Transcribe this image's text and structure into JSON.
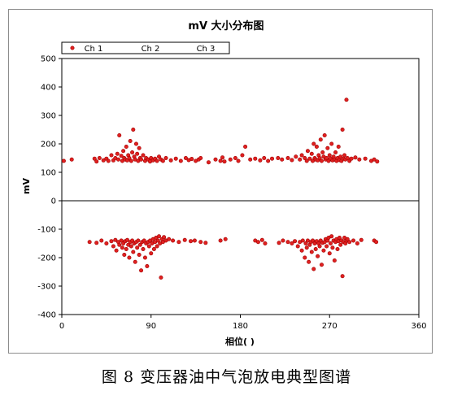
{
  "caption": "图 8  变压器油中气泡放电典型图谱",
  "colors": {
    "point_fill": "#e02020",
    "point_stroke": "#a00000",
    "zero_line": "#000000",
    "plot_border": "#000000",
    "frame": "#8c8c8c"
  },
  "chart_data": {
    "type": "scatter",
    "title": "mV 大小分布图",
    "xlabel": "相位( )",
    "ylabel": "mV",
    "xlim": [
      0,
      360
    ],
    "ylim": [
      -400,
      500
    ],
    "xticks": [
      0,
      90,
      180,
      270,
      360
    ],
    "yticks": [
      -400,
      -300,
      -200,
      -100,
      0,
      100,
      200,
      300,
      400,
      500
    ],
    "grid": false,
    "legend_position": "top-left",
    "legend": [
      "Ch 1",
      "Ch 2",
      "Ch 3"
    ],
    "series": [
      {
        "name": "Ch 1",
        "points": [
          [
            2,
            140
          ],
          [
            10,
            145
          ],
          [
            33,
            148
          ],
          [
            35,
            138
          ],
          [
            38,
            150
          ],
          [
            42,
            142
          ],
          [
            45,
            148
          ],
          [
            47,
            140
          ],
          [
            50,
            160
          ],
          [
            52,
            142
          ],
          [
            54,
            150
          ],
          [
            56,
            165
          ],
          [
            57,
            145
          ],
          [
            58,
            230
          ],
          [
            60,
            158
          ],
          [
            61,
            140
          ],
          [
            62,
            175
          ],
          [
            63,
            150
          ],
          [
            64,
            145
          ],
          [
            65,
            190
          ],
          [
            66,
            142
          ],
          [
            67,
            160
          ],
          [
            68,
            150
          ],
          [
            69,
            210
          ],
          [
            70,
            140
          ],
          [
            71,
            170
          ],
          [
            72,
            250
          ],
          [
            73,
            155
          ],
          [
            74,
            145
          ],
          [
            75,
            200
          ],
          [
            76,
            165
          ],
          [
            77,
            140
          ],
          [
            78,
            185
          ],
          [
            79,
            150
          ],
          [
            80,
            145
          ],
          [
            82,
            160
          ],
          [
            84,
            140
          ],
          [
            85,
            150
          ],
          [
            87,
            145
          ],
          [
            89,
            138
          ],
          [
            90,
            150
          ],
          [
            92,
            142
          ],
          [
            94,
            148
          ],
          [
            96,
            140
          ],
          [
            98,
            155
          ],
          [
            100,
            145
          ],
          [
            102,
            140
          ],
          [
            105,
            150
          ],
          [
            110,
            142
          ],
          [
            115,
            148
          ],
          [
            120,
            140
          ],
          [
            125,
            150
          ],
          [
            128,
            143
          ],
          [
            131,
            147
          ],
          [
            135,
            140
          ],
          [
            138,
            145
          ],
          [
            140,
            150
          ],
          [
            148,
            135
          ],
          [
            155,
            145
          ],
          [
            160,
            140
          ],
          [
            162,
            152
          ],
          [
            164,
            138
          ],
          [
            170,
            145
          ],
          [
            175,
            150
          ],
          [
            178,
            140
          ],
          [
            182,
            160
          ],
          [
            185,
            190
          ],
          [
            190,
            145
          ],
          [
            195,
            148
          ],
          [
            200,
            142
          ],
          [
            204,
            150
          ],
          [
            208,
            140
          ],
          [
            212,
            148
          ],
          [
            218,
            150
          ],
          [
            222,
            145
          ],
          [
            228,
            150
          ],
          [
            232,
            143
          ],
          [
            236,
            155
          ],
          [
            240,
            145
          ],
          [
            242,
            160
          ],
          [
            245,
            150
          ],
          [
            247,
            140
          ],
          [
            248,
            175
          ],
          [
            250,
            148
          ],
          [
            252,
            165
          ],
          [
            253,
            140
          ],
          [
            254,
            200
          ],
          [
            255,
            150
          ],
          [
            256,
            145
          ],
          [
            257,
            190
          ],
          [
            258,
            142
          ],
          [
            259,
            160
          ],
          [
            260,
            150
          ],
          [
            261,
            215
          ],
          [
            262,
            140
          ],
          [
            263,
            170
          ],
          [
            264,
            155
          ],
          [
            265,
            230
          ],
          [
            266,
            145
          ],
          [
            267,
            150
          ],
          [
            268,
            185
          ],
          [
            269,
            140
          ],
          [
            270,
            160
          ],
          [
            271,
            148
          ],
          [
            272,
            200
          ],
          [
            273,
            142
          ],
          [
            274,
            155
          ],
          [
            275,
            145
          ],
          [
            276,
            170
          ],
          [
            277,
            140
          ],
          [
            278,
            150
          ],
          [
            279,
            190
          ],
          [
            280,
            143
          ],
          [
            281,
            155
          ],
          [
            282,
            140
          ],
          [
            283,
            250
          ],
          [
            284,
            148
          ],
          [
            285,
            160
          ],
          [
            286,
            145
          ],
          [
            287,
            355
          ],
          [
            288,
            150
          ],
          [
            290,
            140
          ],
          [
            292,
            148
          ],
          [
            296,
            152
          ],
          [
            300,
            145
          ],
          [
            306,
            148
          ],
          [
            312,
            140
          ],
          [
            315,
            145
          ],
          [
            318,
            138
          ]
        ]
      },
      {
        "name": "Ch 1",
        "points": [
          [
            28,
            -145
          ],
          [
            35,
            -148
          ],
          [
            40,
            -140
          ],
          [
            45,
            -150
          ],
          [
            50,
            -142
          ],
          [
            52,
            -160
          ],
          [
            54,
            -138
          ],
          [
            55,
            -175
          ],
          [
            57,
            -145
          ],
          [
            58,
            -155
          ],
          [
            60,
            -140
          ],
          [
            61,
            -165
          ],
          [
            62,
            -150
          ],
          [
            63,
            -190
          ],
          [
            64,
            -142
          ],
          [
            65,
            -170
          ],
          [
            66,
            -138
          ],
          [
            67,
            -155
          ],
          [
            68,
            -200
          ],
          [
            69,
            -145
          ],
          [
            70,
            -160
          ],
          [
            71,
            -140
          ],
          [
            72,
            -180
          ],
          [
            73,
            -150
          ],
          [
            74,
            -215
          ],
          [
            75,
            -145
          ],
          [
            76,
            -165
          ],
          [
            77,
            -140
          ],
          [
            78,
            -190
          ],
          [
            79,
            -155
          ],
          [
            80,
            -245
          ],
          [
            81,
            -145
          ],
          [
            82,
            -170
          ],
          [
            83,
            -140
          ],
          [
            84,
            -200
          ],
          [
            85,
            -150
          ],
          [
            86,
            -230
          ],
          [
            87,
            -145
          ],
          [
            88,
            -160
          ],
          [
            89,
            -140
          ],
          [
            90,
            -185
          ],
          [
            91,
            -150
          ],
          [
            92,
            -135
          ],
          [
            93,
            -170
          ],
          [
            94,
            -145
          ],
          [
            95,
            -130
          ],
          [
            96,
            -160
          ],
          [
            97,
            -140
          ],
          [
            98,
            -125
          ],
          [
            99,
            -150
          ],
          [
            100,
            -270
          ],
          [
            101,
            -135
          ],
          [
            102,
            -145
          ],
          [
            103,
            -128
          ],
          [
            105,
            -140
          ],
          [
            108,
            -135
          ],
          [
            112,
            -140
          ],
          [
            118,
            -145
          ],
          [
            124,
            -138
          ],
          [
            130,
            -142
          ],
          [
            134,
            -140
          ],
          [
            140,
            -145
          ],
          [
            145,
            -148
          ],
          [
            160,
            -140
          ],
          [
            165,
            -135
          ],
          [
            195,
            -140
          ],
          [
            198,
            -145
          ],
          [
            202,
            -138
          ],
          [
            205,
            -150
          ],
          [
            219,
            -148
          ],
          [
            223,
            -140
          ],
          [
            228,
            -145
          ],
          [
            232,
            -150
          ],
          [
            235,
            -142
          ],
          [
            238,
            -160
          ],
          [
            240,
            -145
          ],
          [
            242,
            -175
          ],
          [
            243,
            -140
          ],
          [
            245,
            -200
          ],
          [
            246,
            -150
          ],
          [
            247,
            -165
          ],
          [
            248,
            -140
          ],
          [
            249,
            -215
          ],
          [
            250,
            -155
          ],
          [
            251,
            -145
          ],
          [
            252,
            -180
          ],
          [
            253,
            -140
          ],
          [
            254,
            -240
          ],
          [
            255,
            -150
          ],
          [
            256,
            -170
          ],
          [
            257,
            -142
          ],
          [
            258,
            -195
          ],
          [
            259,
            -150
          ],
          [
            260,
            -160
          ],
          [
            261,
            -140
          ],
          [
            262,
            -225
          ],
          [
            263,
            -148
          ],
          [
            264,
            -175
          ],
          [
            265,
            -145
          ],
          [
            266,
            -135
          ],
          [
            267,
            -160
          ],
          [
            268,
            -140
          ],
          [
            269,
            -130
          ],
          [
            270,
            -185
          ],
          [
            271,
            -150
          ],
          [
            272,
            -125
          ],
          [
            273,
            -165
          ],
          [
            274,
            -140
          ],
          [
            275,
            -210
          ],
          [
            276,
            -145
          ],
          [
            277,
            -135
          ],
          [
            278,
            -170
          ],
          [
            279,
            -142
          ],
          [
            280,
            -130
          ],
          [
            281,
            -155
          ],
          [
            282,
            -140
          ],
          [
            283,
            -265
          ],
          [
            284,
            -145
          ],
          [
            285,
            -130
          ],
          [
            286,
            -150
          ],
          [
            287,
            -140
          ],
          [
            288,
            -135
          ],
          [
            290,
            -145
          ],
          [
            294,
            -140
          ],
          [
            298,
            -150
          ],
          [
            302,
            -138
          ],
          [
            315,
            -140
          ],
          [
            317,
            -145
          ]
        ]
      }
    ]
  }
}
